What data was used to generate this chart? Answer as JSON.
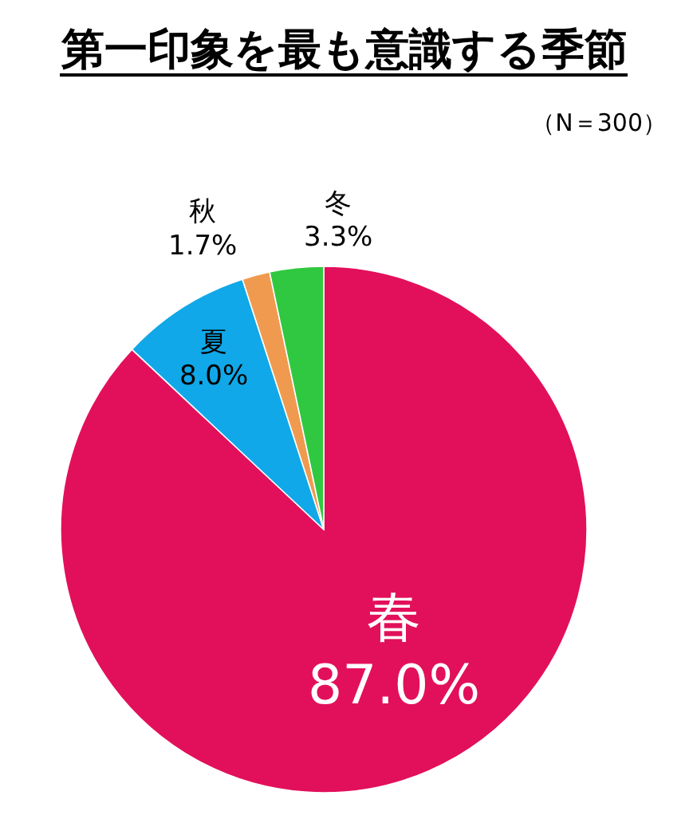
{
  "chart_data": {
    "type": "pie",
    "title": "第一印象を最も意識する季節",
    "subtitle": "（N＝300）",
    "categories": [
      "春",
      "夏",
      "秋",
      "冬"
    ],
    "values": [
      87.0,
      8.0,
      1.7,
      3.3
    ],
    "value_labels": [
      "87.0%",
      "8.0%",
      "1.7%",
      "3.3%"
    ],
    "colors": [
      "#e2105a",
      "#10a8e8",
      "#f09a50",
      "#30c840"
    ],
    "legend": false
  }
}
